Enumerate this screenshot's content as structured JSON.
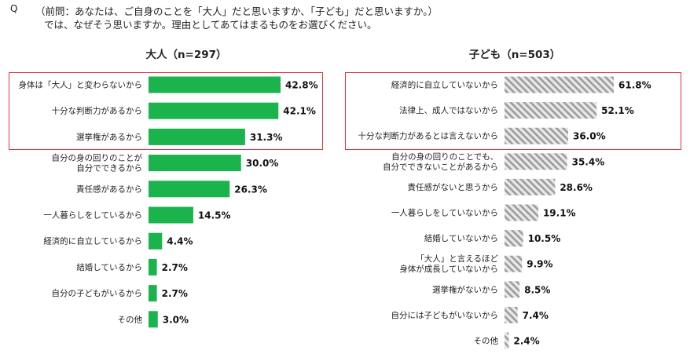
{
  "question": {
    "mark": "Q",
    "line1": "（前問：あなたは、ご自身のことを「大人」だと思いますか、「子ども」だと思いますか。）",
    "line2": "では、なぜそう思いますか。理由としてあてはまるものをお選びください。"
  },
  "colors": {
    "adult_bar": "#1ab34c",
    "child_hatch_fg": "#9c9c9c",
    "child_hatch_bg": "#e8e8e8",
    "highlight_box": "#e0303a"
  },
  "chart_data": [
    {
      "type": "bar",
      "orientation": "horizontal",
      "title": "大人（n=297）",
      "unit": "%",
      "categories": [
        [
          "身体は「大人」と変わらないから"
        ],
        [
          "十分な判断力があるから"
        ],
        [
          "選挙権があるから"
        ],
        [
          "自分の身の回りのことが",
          "自分でできるから"
        ],
        [
          "責任感があるから"
        ],
        [
          "一人暮らしをしているから"
        ],
        [
          "経済的に自立しているから"
        ],
        [
          "結婚しているから"
        ],
        [
          "自分の子どもがいるから"
        ],
        [
          "その他"
        ]
      ],
      "values": [
        42.8,
        42.1,
        31.3,
        30.0,
        26.3,
        14.5,
        4.4,
        2.7,
        2.7,
        3.0
      ],
      "value_labels": [
        "42.8%",
        "42.1%",
        "31.3%",
        "30.0%",
        "26.3%",
        "14.5%",
        "4.4%",
        "2.7%",
        "2.7%",
        "3.0%"
      ],
      "highlighted_top": 3,
      "bar_style": "solid-green"
    },
    {
      "type": "bar",
      "orientation": "horizontal",
      "title": "子ども（n=503）",
      "unit": "%",
      "categories": [
        [
          "経済的に自立していないから"
        ],
        [
          "法律上、成人ではないから"
        ],
        [
          "十分な判断力があるとは言えないから"
        ],
        [
          "自分の身の回りのことでも、",
          "自分でできないことがあるから"
        ],
        [
          "責任感がないと思うから"
        ],
        [
          "一人暮らしをしていないから"
        ],
        [
          "結婚していないから"
        ],
        [
          "「大人」と言えるほど",
          "身体が成長していないから"
        ],
        [
          "選挙権がないから"
        ],
        [
          "自分には子どもがいないから"
        ],
        [
          "その他"
        ]
      ],
      "values": [
        61.8,
        52.1,
        36.0,
        35.4,
        28.6,
        19.1,
        10.5,
        9.9,
        8.5,
        7.4,
        2.4
      ],
      "value_labels": [
        "61.8%",
        "52.1%",
        "36.0%",
        "35.4%",
        "28.6%",
        "19.1%",
        "10.5%",
        "9.9%",
        "8.5%",
        "7.4%",
        "2.4%"
      ],
      "highlighted_top": 3,
      "bar_style": "hatched-gray"
    }
  ]
}
